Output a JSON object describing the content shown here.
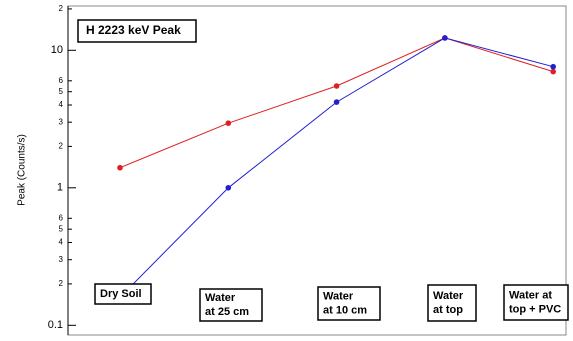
{
  "chart_data": {
    "type": "line",
    "title": "H 2223 keV Peak",
    "y_label": "Peak (Counts/s)",
    "log_y": true,
    "categories": [
      [
        "Dry Soil"
      ],
      [
        "Water",
        "at 25 cm"
      ],
      [
        "Water",
        "at 10 cm"
      ],
      [
        "Water",
        "at top"
      ],
      [
        "Water at",
        "top + PVC"
      ]
    ],
    "series": [
      {
        "color": "#e02020",
        "values": [
          1.4,
          2.95,
          5.5,
          12.3,
          7.0
        ]
      },
      {
        "color": "#2020d0",
        "values": [
          0.16,
          1.0,
          4.2,
          12.3,
          7.6
        ]
      }
    ],
    "ylim": [
      0.085,
      21
    ],
    "yticks": [
      0.1,
      {
        "value": 0.2,
        "label": "2"
      },
      {
        "value": 0.3,
        "label": "3"
      },
      {
        "value": 0.4,
        "label": "4"
      },
      {
        "value": 0.5,
        "label": "5"
      },
      {
        "value": 0.6,
        "label": "6"
      },
      1,
      {
        "value": 2,
        "label": "2"
      },
      {
        "value": 3,
        "label": "3"
      },
      {
        "value": 4,
        "label": "4"
      },
      {
        "value": 5,
        "label": "5"
      },
      {
        "value": 6,
        "label": "6"
      },
      10,
      {
        "value": 20,
        "label": "2"
      }
    ]
  }
}
